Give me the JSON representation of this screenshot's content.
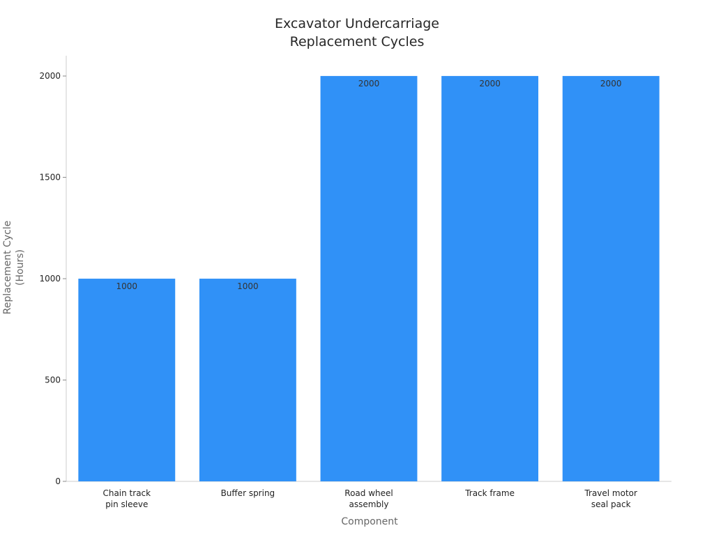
{
  "chart_data": {
    "type": "bar",
    "title": "Excavator Undercarriage\nReplacement Cycles",
    "x_label": "Component",
    "y_label": "Replacement Cycle\n(Hours)",
    "categories": [
      "Chain track\npin sleeve",
      "Buffer spring",
      "Road wheel\nassembly",
      "Track frame",
      "Travel motor\nseal pack"
    ],
    "values": [
      1000,
      1000,
      2000,
      2000,
      2000
    ],
    "color": "#3091f7",
    "ylim": [
      0,
      2100
    ],
    "yticks": [
      0,
      500,
      1000,
      1500,
      2000
    ],
    "grid": false
  }
}
